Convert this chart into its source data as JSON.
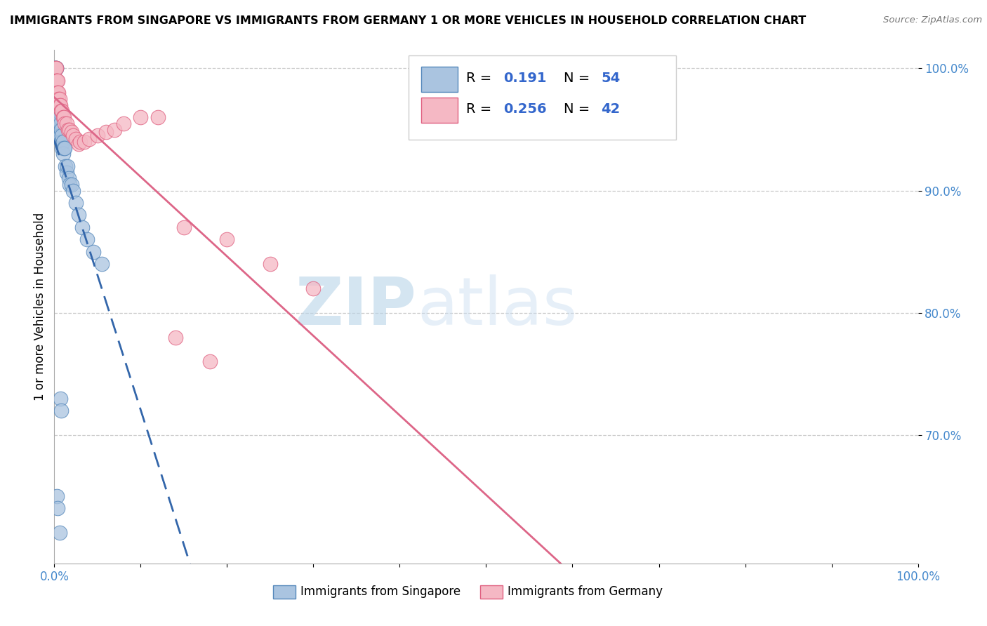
{
  "title": "IMMIGRANTS FROM SINGAPORE VS IMMIGRANTS FROM GERMANY 1 OR MORE VEHICLES IN HOUSEHOLD CORRELATION CHART",
  "source": "Source: ZipAtlas.com",
  "ylabel": "1 or more Vehicles in Household",
  "xlim": [
    0.0,
    1.0
  ],
  "ylim": [
    0.595,
    1.015
  ],
  "ytick_vals": [
    0.7,
    0.8,
    0.9,
    1.0
  ],
  "ytick_labels": [
    "70.0%",
    "80.0%",
    "90.0%",
    "100.0%"
  ],
  "xtick_vals": [
    0.0,
    0.1,
    0.2,
    0.3,
    0.4,
    0.5,
    0.6,
    0.7,
    0.8,
    0.9,
    1.0
  ],
  "xtick_labels": [
    "0.0%",
    "",
    "",
    "",
    "",
    "",
    "",
    "",
    "",
    "",
    "100.0%"
  ],
  "singapore_color": "#aac4e0",
  "germany_color": "#f5b8c4",
  "singapore_edge_color": "#5588bb",
  "germany_edge_color": "#e06080",
  "singapore_R": 0.191,
  "singapore_N": 54,
  "germany_R": 0.256,
  "germany_N": 42,
  "trend_singapore_color": "#3366aa",
  "trend_germany_color": "#dd6688",
  "watermark_zip": "ZIP",
  "watermark_atlas": "atlas",
  "background_color": "#ffffff",
  "grid_color": "#cccccc",
  "singapore_x": [
    0.001,
    0.001,
    0.001,
    0.001,
    0.001,
    0.002,
    0.002,
    0.002,
    0.002,
    0.002,
    0.002,
    0.003,
    0.003,
    0.003,
    0.003,
    0.003,
    0.004,
    0.004,
    0.004,
    0.004,
    0.005,
    0.005,
    0.005,
    0.006,
    0.006,
    0.006,
    0.007,
    0.007,
    0.008,
    0.008,
    0.009,
    0.009,
    0.01,
    0.01,
    0.011,
    0.012,
    0.013,
    0.014,
    0.015,
    0.017,
    0.018,
    0.02,
    0.022,
    0.025,
    0.028,
    0.032,
    0.038,
    0.045,
    0.055,
    0.007,
    0.008,
    0.003,
    0.004,
    0.006
  ],
  "singapore_y": [
    1.0,
    1.0,
    1.0,
    1.0,
    0.99,
    1.0,
    1.0,
    0.99,
    0.98,
    0.97,
    0.96,
    0.99,
    0.98,
    0.97,
    0.96,
    0.95,
    0.97,
    0.96,
    0.955,
    0.95,
    0.965,
    0.955,
    0.945,
    0.96,
    0.95,
    0.945,
    0.955,
    0.945,
    0.95,
    0.94,
    0.945,
    0.935,
    0.94,
    0.93,
    0.935,
    0.935,
    0.92,
    0.915,
    0.92,
    0.91,
    0.905,
    0.905,
    0.9,
    0.89,
    0.88,
    0.87,
    0.86,
    0.85,
    0.84,
    0.73,
    0.72,
    0.65,
    0.64,
    0.62
  ],
  "germany_x": [
    0.001,
    0.001,
    0.001,
    0.002,
    0.002,
    0.002,
    0.003,
    0.003,
    0.004,
    0.004,
    0.005,
    0.005,
    0.006,
    0.006,
    0.007,
    0.008,
    0.009,
    0.01,
    0.011,
    0.012,
    0.014,
    0.016,
    0.018,
    0.02,
    0.022,
    0.025,
    0.028,
    0.03,
    0.035,
    0.04,
    0.05,
    0.06,
    0.07,
    0.08,
    0.1,
    0.12,
    0.15,
    0.2,
    0.25,
    0.3,
    0.14,
    0.18
  ],
  "germany_y": [
    1.0,
    1.0,
    0.99,
    1.0,
    0.99,
    0.98,
    0.99,
    0.98,
    0.99,
    0.98,
    0.98,
    0.975,
    0.975,
    0.97,
    0.97,
    0.965,
    0.965,
    0.96,
    0.96,
    0.955,
    0.955,
    0.95,
    0.95,
    0.948,
    0.945,
    0.942,
    0.938,
    0.94,
    0.94,
    0.942,
    0.945,
    0.948,
    0.95,
    0.955,
    0.96,
    0.96,
    0.87,
    0.86,
    0.84,
    0.82,
    0.78,
    0.76
  ]
}
